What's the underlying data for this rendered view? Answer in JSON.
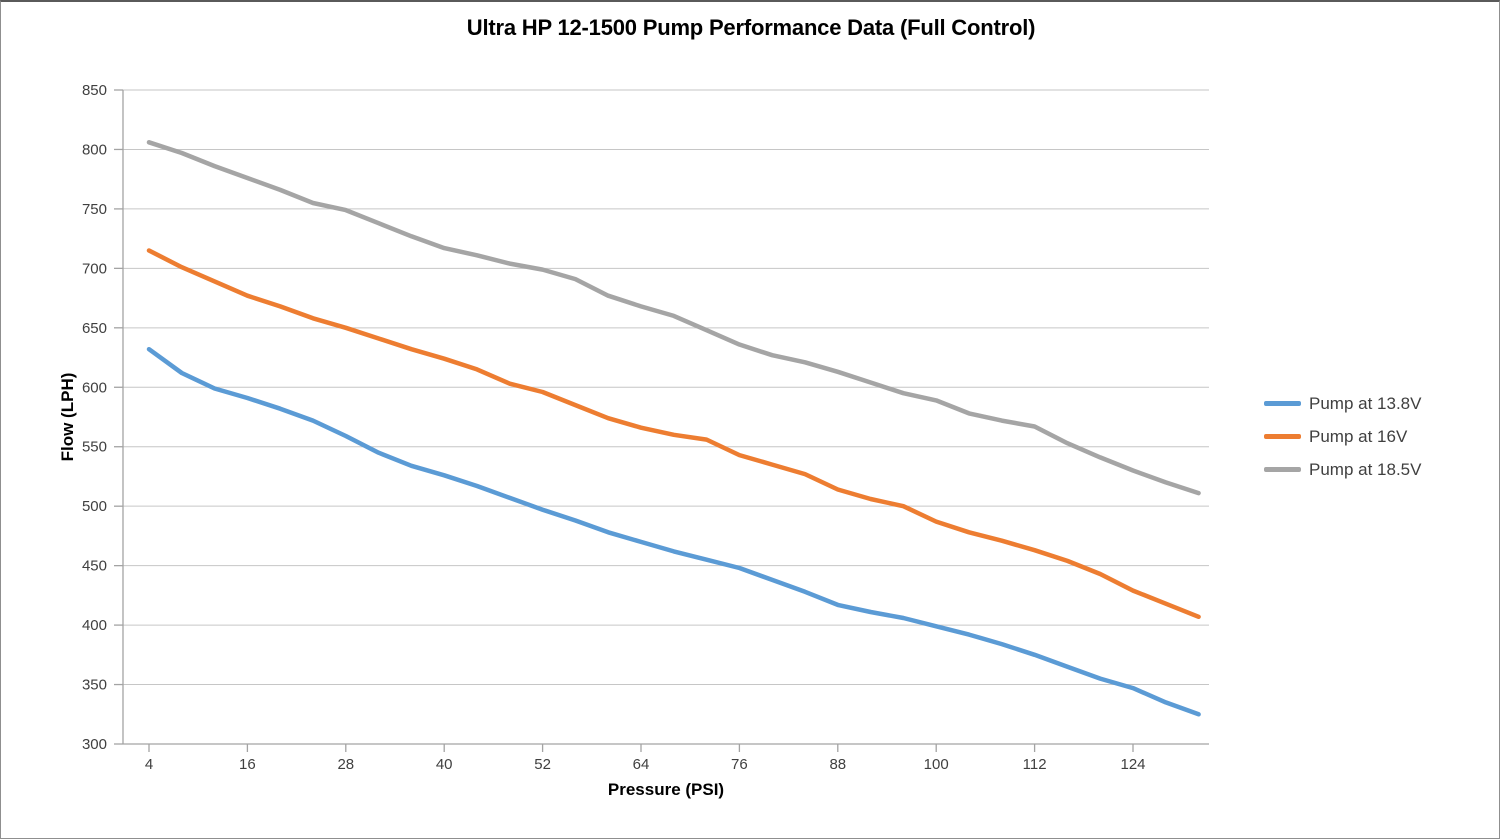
{
  "chart_data": {
    "type": "line",
    "title": "Ultra HP 12-1500 Pump Performance Data (Full Control)",
    "xlabel": "Pressure (PSI)",
    "ylabel": "Flow (LPH)",
    "x": [
      4,
      8,
      12,
      16,
      20,
      24,
      28,
      32,
      36,
      40,
      44,
      48,
      52,
      56,
      60,
      64,
      68,
      72,
      76,
      80,
      84,
      88,
      92,
      96,
      100,
      104,
      108,
      112,
      116,
      120,
      124,
      128,
      132
    ],
    "xticks": [
      4,
      16,
      28,
      40,
      52,
      64,
      76,
      88,
      100,
      112,
      124
    ],
    "ylim": [
      300,
      850
    ],
    "ytick_step": 50,
    "grid": "horizontal-only",
    "legend_position": "right",
    "series": [
      {
        "name": "Pump at 13.8V",
        "color": "#5B9BD5",
        "values": [
          632,
          612,
          599,
          591,
          582,
          572,
          559,
          545,
          534,
          526,
          517,
          507,
          497,
          488,
          478,
          470,
          462,
          455,
          448,
          438,
          428,
          417,
          411,
          406,
          399,
          392,
          384,
          375,
          365,
          355,
          347,
          335,
          325
        ]
      },
      {
        "name": "Pump at 16V",
        "color": "#ED7D31",
        "values": [
          715,
          701,
          689,
          677,
          668,
          658,
          650,
          641,
          632,
          624,
          615,
          603,
          596,
          585,
          574,
          566,
          560,
          556,
          543,
          535,
          527,
          514,
          506,
          500,
          487,
          478,
          471,
          463,
          454,
          443,
          429,
          418,
          407
        ]
      },
      {
        "name": "Pump at 18.5V",
        "color": "#A5A5A5",
        "values": [
          806,
          797,
          786,
          776,
          766,
          755,
          749,
          738,
          727,
          717,
          711,
          704,
          699,
          691,
          677,
          668,
          660,
          648,
          636,
          627,
          621,
          613,
          604,
          595,
          589,
          578,
          572,
          567,
          553,
          541,
          530,
          520,
          511
        ]
      }
    ],
    "colors": {
      "background": "#ffffff",
      "gridline": "#c6c6c6",
      "axis": "#a3a3a3",
      "tick_label": "#404040",
      "title": "#000000"
    }
  }
}
